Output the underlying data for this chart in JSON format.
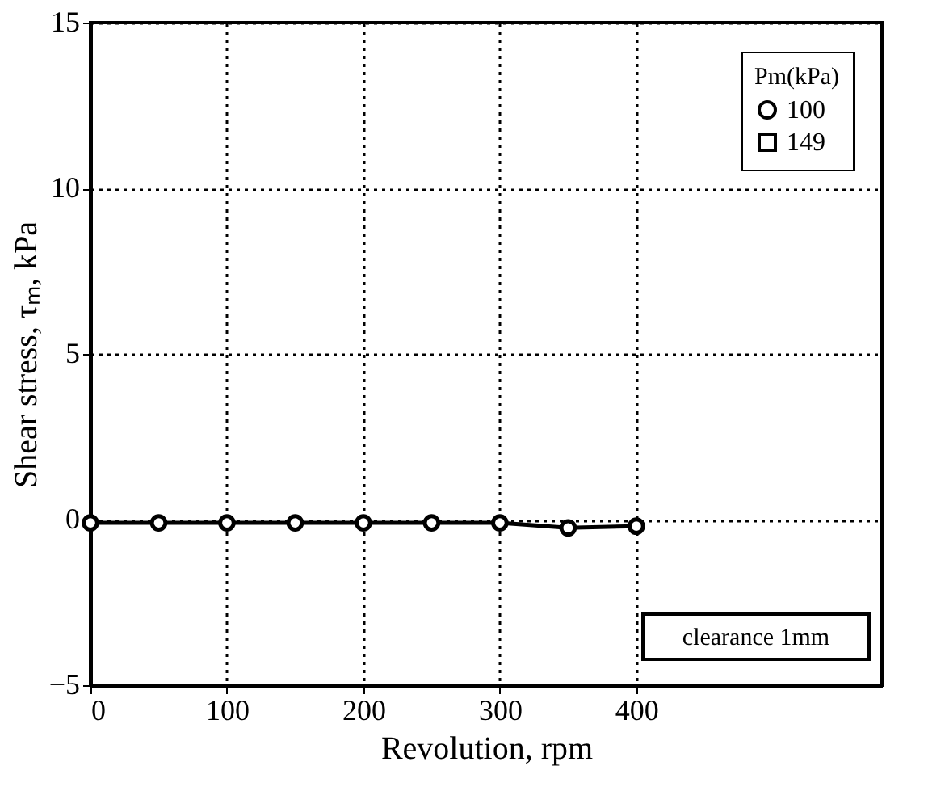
{
  "chart_data": {
    "type": "line",
    "xlabel": "Revolution, rpm",
    "ylabel": "Shear stress, τₘ, kPa",
    "legend_title": "Pm(kPa)",
    "x": [
      0,
      50,
      100,
      150,
      200,
      250,
      300,
      350,
      400
    ],
    "series": [
      {
        "name": "100",
        "color": "#000000",
        "marker": "circle",
        "values": [
          -0.1,
          -0.1,
          -0.1,
          -0.1,
          -0.1,
          -0.1,
          -0.1,
          -0.25,
          -0.2
        ]
      },
      {
        "name": "149",
        "color": "#000000",
        "marker": "square",
        "values": [
          null,
          null,
          null,
          null,
          null,
          null,
          null,
          null,
          null
        ]
      }
    ],
    "xlim": [
      0,
      580
    ],
    "xticks": [
      0,
      100,
      200,
      300,
      400
    ],
    "ylim": [
      -5,
      15
    ],
    "yticks": [
      -5,
      0,
      5,
      10,
      15
    ],
    "grid": true,
    "legend": "top right",
    "line_style": "solid",
    "annotations": [
      "clearance 1mm"
    ]
  }
}
